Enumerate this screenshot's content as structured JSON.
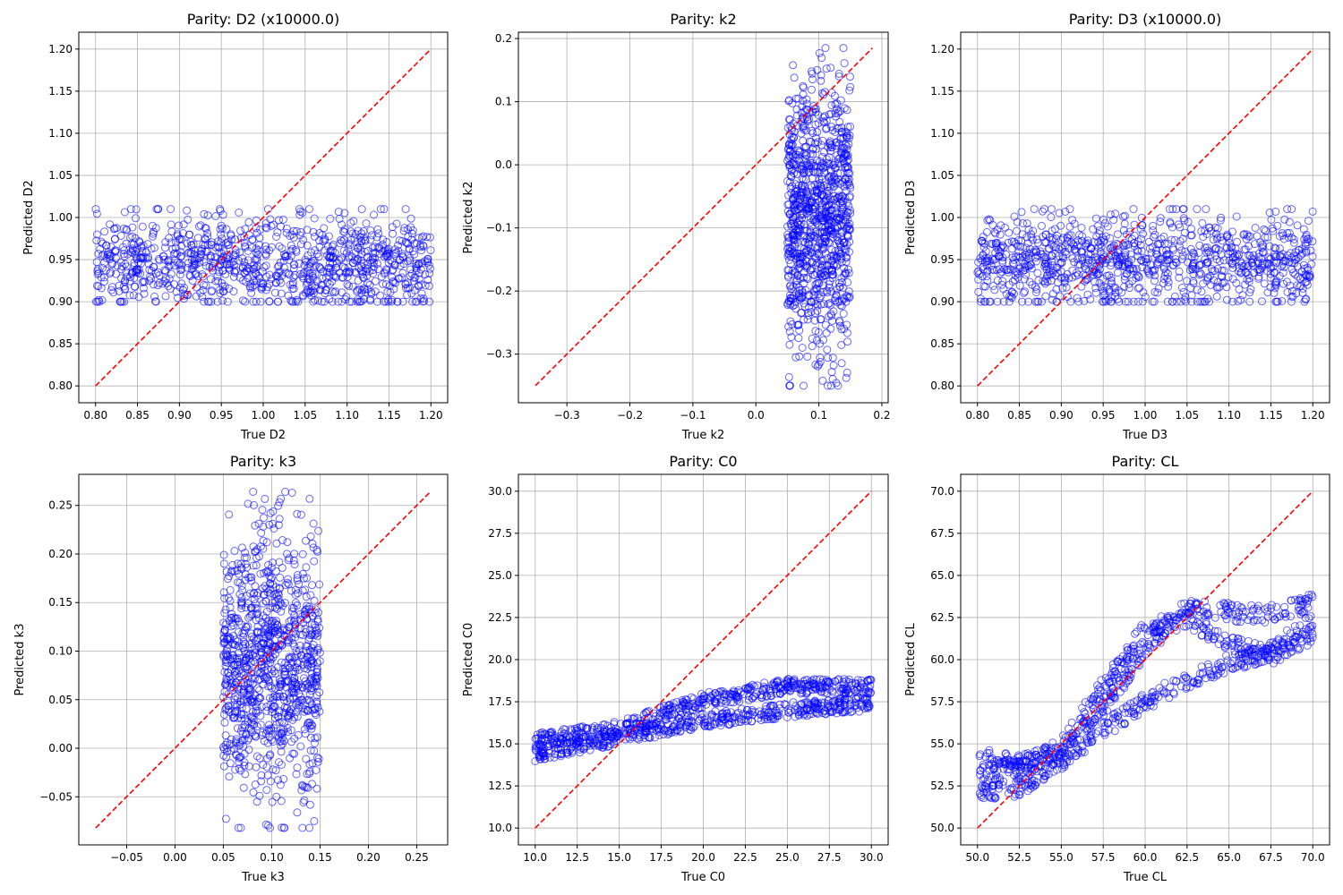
{
  "chart_data": [
    {
      "type": "scatter",
      "title": "Parity: D2 (x10000.0)",
      "xlabel": "True D2",
      "ylabel": "Predicted D2",
      "xlim": [
        0.78,
        1.22
      ],
      "ylim": [
        0.78,
        1.22
      ],
      "xticks": [
        0.8,
        0.85,
        0.9,
        0.95,
        1.0,
        1.05,
        1.1,
        1.15,
        1.2
      ],
      "xtick_labels": [
        "0.80",
        "0.85",
        "0.90",
        "0.95",
        "1.00",
        "1.05",
        "1.10",
        "1.15",
        "1.20"
      ],
      "yticks": [
        0.8,
        0.85,
        0.9,
        0.95,
        1.0,
        1.05,
        1.1,
        1.15,
        1.2
      ],
      "ytick_labels": [
        "0.80",
        "0.85",
        "0.90",
        "0.95",
        "1.00",
        "1.05",
        "1.10",
        "1.15",
        "1.20"
      ],
      "grid": true,
      "reference_line": {
        "from": [
          0.8,
          0.8
        ],
        "to": [
          1.2,
          1.2
        ],
        "color": "#ff0000",
        "style": "dashed"
      },
      "point_color": "#0000ff",
      "points": {
        "x_range": [
          0.8,
          1.2
        ],
        "y_range": [
          0.9,
          1.01
        ],
        "y_center": 0.945,
        "trend": "flat",
        "count": 1000
      }
    },
    {
      "type": "scatter",
      "title": "Parity: k2",
      "xlabel": "True k2",
      "ylabel": "Predicted k2",
      "xlim": [
        -0.377,
        0.21
      ],
      "ylim": [
        -0.377,
        0.21
      ],
      "xticks": [
        -0.3,
        -0.2,
        -0.1,
        0.0,
        0.1,
        0.2
      ],
      "xtick_labels": [
        "−0.3",
        "−0.2",
        "−0.1",
        "0.0",
        "0.1",
        "0.2"
      ],
      "yticks": [
        -0.3,
        -0.2,
        -0.1,
        0.0,
        0.1,
        0.2
      ],
      "ytick_labels": [
        "−0.3",
        "−0.2",
        "−0.1",
        "0.0",
        "0.1",
        "0.2"
      ],
      "grid": true,
      "reference_line": {
        "from": [
          -0.35,
          -0.35
        ],
        "to": [
          0.185,
          0.185
        ],
        "color": "#ff0000",
        "style": "dashed"
      },
      "point_color": "#0000ff",
      "points": {
        "x_range": [
          0.05,
          0.15
        ],
        "y_range": [
          -0.35,
          0.185
        ],
        "y_center": -0.09,
        "trend": "vertical-band",
        "count": 1000
      }
    },
    {
      "type": "scatter",
      "title": "Parity: D3 (x10000.0)",
      "xlabel": "True D3",
      "ylabel": "Predicted D3",
      "xlim": [
        0.78,
        1.22
      ],
      "ylim": [
        0.78,
        1.22
      ],
      "xticks": [
        0.8,
        0.85,
        0.9,
        0.95,
        1.0,
        1.05,
        1.1,
        1.15,
        1.2
      ],
      "xtick_labels": [
        "0.80",
        "0.85",
        "0.90",
        "0.95",
        "1.00",
        "1.05",
        "1.10",
        "1.15",
        "1.20"
      ],
      "yticks": [
        0.8,
        0.85,
        0.9,
        0.95,
        1.0,
        1.05,
        1.1,
        1.15,
        1.2
      ],
      "ytick_labels": [
        "0.80",
        "0.85",
        "0.90",
        "0.95",
        "1.00",
        "1.05",
        "1.10",
        "1.15",
        "1.20"
      ],
      "grid": true,
      "reference_line": {
        "from": [
          0.8,
          0.8
        ],
        "to": [
          1.2,
          1.2
        ],
        "color": "#ff0000",
        "style": "dashed"
      },
      "point_color": "#0000ff",
      "points": {
        "x_range": [
          0.8,
          1.2
        ],
        "y_range": [
          0.9,
          1.01
        ],
        "y_center": 0.948,
        "trend": "flat",
        "count": 1000
      }
    },
    {
      "type": "scatter",
      "title": "Parity: k3",
      "xlabel": "True k3",
      "ylabel": "Predicted k3",
      "xlim": [
        -0.0995,
        0.282
      ],
      "ylim": [
        -0.0995,
        0.282
      ],
      "xticks": [
        -0.05,
        0.0,
        0.05,
        0.1,
        0.15,
        0.2,
        0.25
      ],
      "xtick_labels": [
        "−0.05",
        "0.00",
        "0.05",
        "0.10",
        "0.15",
        "0.20",
        "0.25"
      ],
      "yticks": [
        -0.05,
        0.0,
        0.05,
        0.1,
        0.15,
        0.2,
        0.25
      ],
      "ytick_labels": [
        "−0.05",
        "0.00",
        "0.05",
        "0.10",
        "0.15",
        "0.20",
        "0.25"
      ],
      "grid": true,
      "reference_line": {
        "from": [
          -0.082,
          -0.082
        ],
        "to": [
          0.264,
          0.264
        ],
        "color": "#ff0000",
        "style": "dashed"
      },
      "point_color": "#0000ff",
      "points": {
        "x_range": [
          0.05,
          0.15
        ],
        "y_range": [
          -0.082,
          0.264
        ],
        "y_center": 0.085,
        "trend": "vertical-band",
        "count": 1000
      }
    },
    {
      "type": "scatter",
      "title": "Parity: C0",
      "xlabel": "True C0",
      "ylabel": "Predicted C0",
      "xlim": [
        9,
        31
      ],
      "ylim": [
        9,
        31
      ],
      "xticks": [
        10.0,
        12.5,
        15.0,
        17.5,
        20.0,
        22.5,
        25.0,
        27.5,
        30.0
      ],
      "xtick_labels": [
        "10.0",
        "12.5",
        "15.0",
        "17.5",
        "20.0",
        "22.5",
        "25.0",
        "27.5",
        "30.0"
      ],
      "yticks": [
        10.0,
        12.5,
        15.0,
        17.5,
        20.0,
        22.5,
        25.0,
        27.5,
        30.0
      ],
      "ytick_labels": [
        "10.0",
        "12.5",
        "15.0",
        "17.5",
        "20.0",
        "22.5",
        "25.0",
        "27.5",
        "30.0"
      ],
      "grid": true,
      "reference_line": {
        "from": [
          10,
          10
        ],
        "to": [
          30,
          30
        ],
        "color": "#ff0000",
        "style": "dashed"
      },
      "point_color": "#0000ff",
      "points": {
        "x_range": [
          10,
          30
        ],
        "y_range": [
          14.0,
          18.8
        ],
        "trend": "two-bands",
        "bands": [
          {
            "x": [
              10,
              15,
              20,
              25,
              30
            ],
            "y": [
              14.4,
              15.4,
              16.4,
              17.0,
              17.4
            ]
          },
          {
            "x": [
              10,
              15,
              20,
              25,
              30
            ],
            "y": [
              15.2,
              15.9,
              17.6,
              18.4,
              18.4
            ]
          }
        ],
        "count": 1000
      }
    },
    {
      "type": "scatter",
      "title": "Parity: CL",
      "xlabel": "True CL",
      "ylabel": "Predicted CL",
      "xlim": [
        49,
        71
      ],
      "ylim": [
        49,
        71
      ],
      "xticks": [
        50.0,
        52.5,
        55.0,
        57.5,
        60.0,
        62.5,
        65.0,
        67.5,
        70.0
      ],
      "xtick_labels": [
        "50.0",
        "52.5",
        "55.0",
        "57.5",
        "60.0",
        "62.5",
        "65.0",
        "67.5",
        "70.0"
      ],
      "yticks": [
        50.0,
        52.5,
        55.0,
        57.5,
        60.0,
        62.5,
        65.0,
        67.5,
        70.0
      ],
      "ytick_labels": [
        "50.0",
        "52.5",
        "55.0",
        "57.5",
        "60.0",
        "62.5",
        "65.0",
        "67.5",
        "70.0"
      ],
      "grid": true,
      "reference_line": {
        "from": [
          50,
          50
        ],
        "to": [
          70,
          70
        ],
        "color": "#ff0000",
        "style": "dashed"
      },
      "point_color": "#0000ff",
      "points": {
        "x_range": [
          50,
          70
        ],
        "y_range": [
          52.0,
          64.4
        ],
        "trend": "s-curve-bands",
        "bands": [
          {
            "x": [
              50,
              52.5,
              55,
              57.5,
              60,
              62.5,
              65,
              67.5,
              70
            ],
            "y": [
              54.2,
              53.8,
              54.5,
              57.2,
              60.5,
              63.2,
              62.8,
              62.7,
              63.4
            ]
          },
          {
            "x": [
              50,
              52.5,
              55,
              57.5,
              60,
              62.5,
              65,
              67.5,
              70
            ],
            "y": [
              53.2,
              53.5,
              54.8,
              58.5,
              61.8,
              62.4,
              61.0,
              60.2,
              61.5
            ]
          },
          {
            "x": [
              50,
              52.5,
              55,
              57.5,
              60,
              62.5,
              65,
              67.5,
              70
            ],
            "y": [
              52.2,
              52.4,
              54.0,
              55.8,
              57.5,
              58.8,
              59.8,
              60.5,
              62.3
            ]
          }
        ],
        "count": 1000
      }
    }
  ]
}
